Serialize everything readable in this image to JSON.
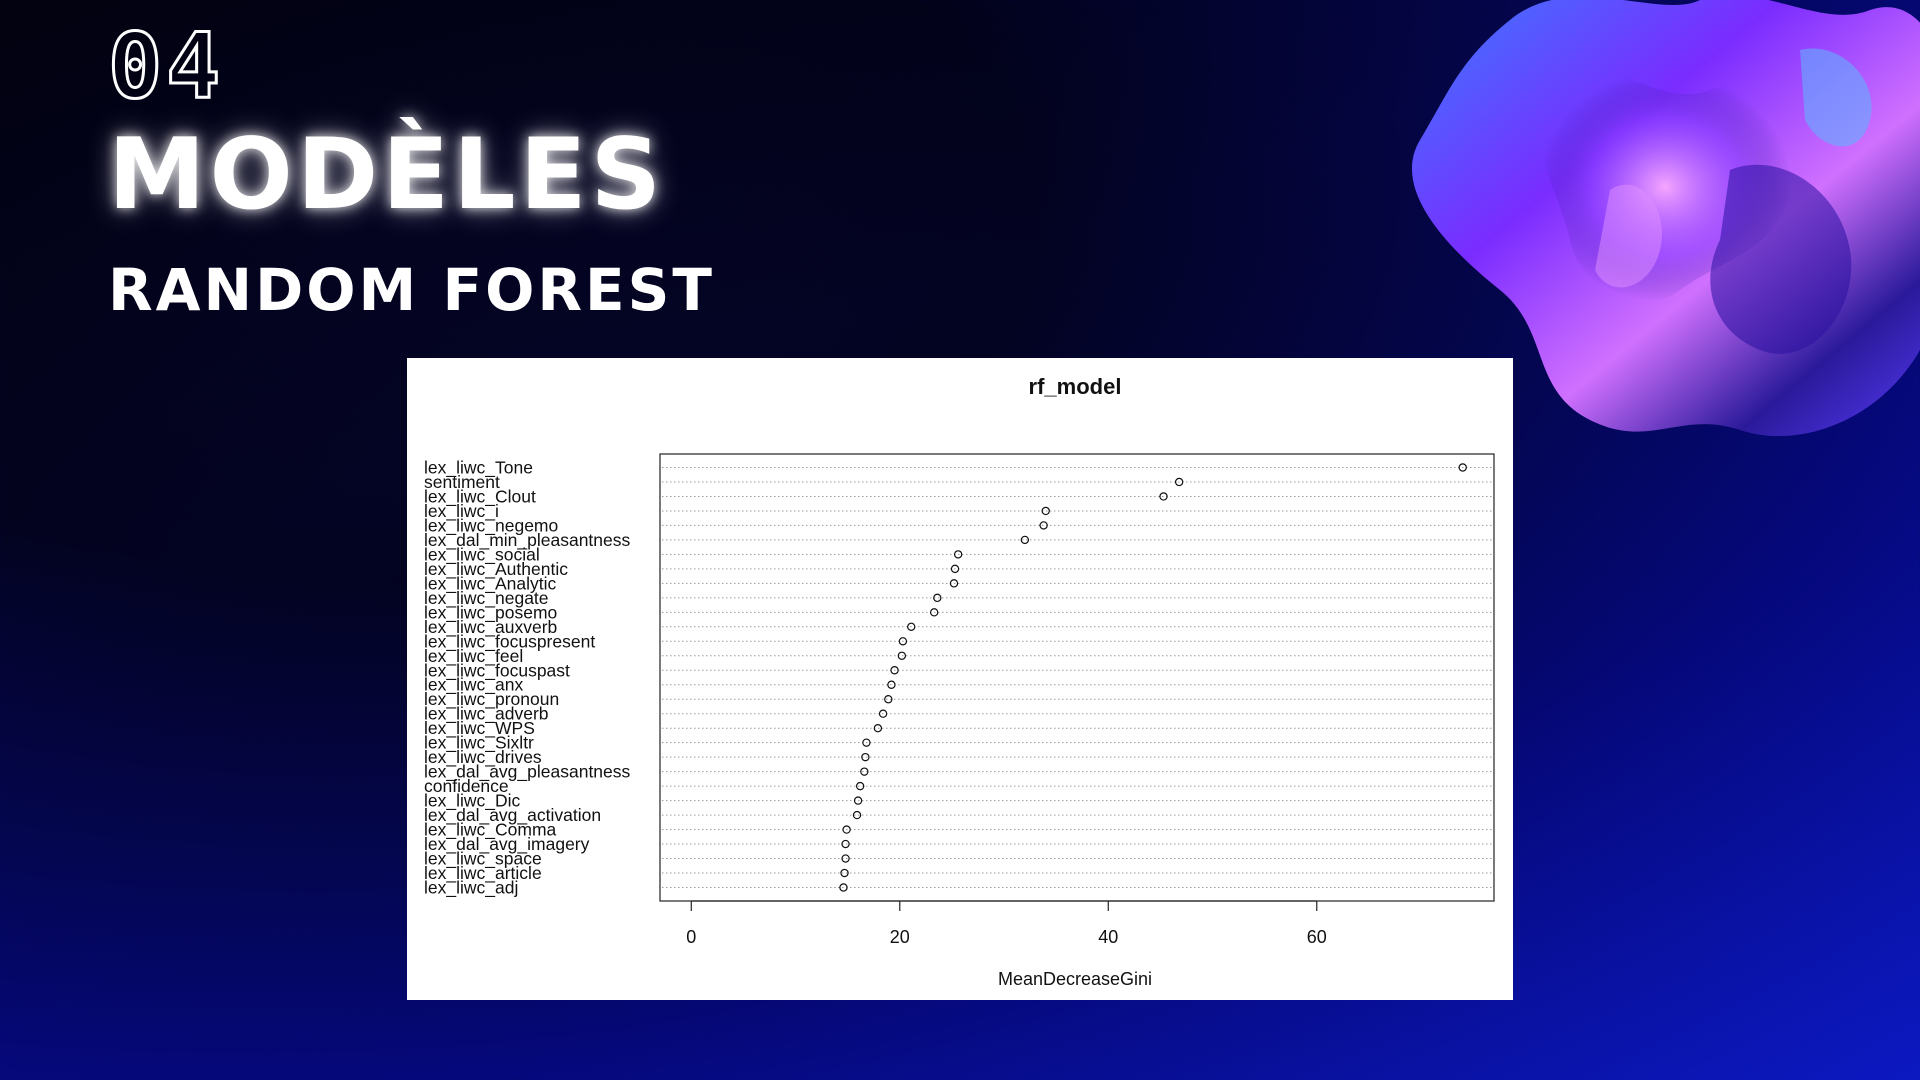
{
  "slide": {
    "section_number": "04",
    "title": "MODÈLES",
    "subtitle": "RANDOM FOREST"
  },
  "colors": {
    "background_dark": "#030320",
    "background_blue": "#0a14b8",
    "text": "#ffffff",
    "chart_background": "#ffffff"
  },
  "decor": {
    "blob": "iridescent-3d-blob"
  },
  "chart_data": {
    "type": "scatter",
    "subtype": "dotchart",
    "title": "rf_model",
    "xlabel": "MeanDecreaseGini",
    "ylabel": "",
    "xlim": [
      -3,
      77
    ],
    "xticks": [
      0,
      20,
      40,
      60
    ],
    "grid": "dotted-horizontal",
    "points": [
      {
        "label": "lex_liwc_Tone",
        "value": 74.0
      },
      {
        "label": "sentiment",
        "value": 46.8
      },
      {
        "label": "lex_liwc_Clout",
        "value": 45.3
      },
      {
        "label": "lex_liwc_i",
        "value": 34.0
      },
      {
        "label": "lex_liwc_negemo",
        "value": 33.8
      },
      {
        "label": "lex_dal_min_pleasantness",
        "value": 32.0
      },
      {
        "label": "lex_liwc_social",
        "value": 25.6
      },
      {
        "label": "lex_liwc_Authentic",
        "value": 25.3
      },
      {
        "label": "lex_liwc_Analytic",
        "value": 25.2
      },
      {
        "label": "lex_liwc_negate",
        "value": 23.6
      },
      {
        "label": "lex_liwc_posemo",
        "value": 23.3
      },
      {
        "label": "lex_liwc_auxverb",
        "value": 21.1
      },
      {
        "label": "lex_liwc_focuspresent",
        "value": 20.3
      },
      {
        "label": "lex_liwc_feel",
        "value": 20.2
      },
      {
        "label": "lex_liwc_focuspast",
        "value": 19.5
      },
      {
        "label": "lex_liwc_anx",
        "value": 19.2
      },
      {
        "label": "lex_liwc_pronoun",
        "value": 18.9
      },
      {
        "label": "lex_liwc_adverb",
        "value": 18.4
      },
      {
        "label": "lex_liwc_WPS",
        "value": 17.9
      },
      {
        "label": "lex_liwc_Sixltr",
        "value": 16.8
      },
      {
        "label": "lex_liwc_drives",
        "value": 16.7
      },
      {
        "label": "lex_dal_avg_pleasantness",
        "value": 16.6
      },
      {
        "label": "confidence",
        "value": 16.2
      },
      {
        "label": "lex_liwc_Dic",
        "value": 16.0
      },
      {
        "label": "lex_dal_avg_activation",
        "value": 15.9
      },
      {
        "label": "lex_liwc_Comma",
        "value": 14.9
      },
      {
        "label": "lex_dal_avg_imagery",
        "value": 14.8
      },
      {
        "label": "lex_liwc_space",
        "value": 14.8
      },
      {
        "label": "lex_liwc_article",
        "value": 14.7
      },
      {
        "label": "lex_liwc_adj",
        "value": 14.6
      }
    ]
  }
}
